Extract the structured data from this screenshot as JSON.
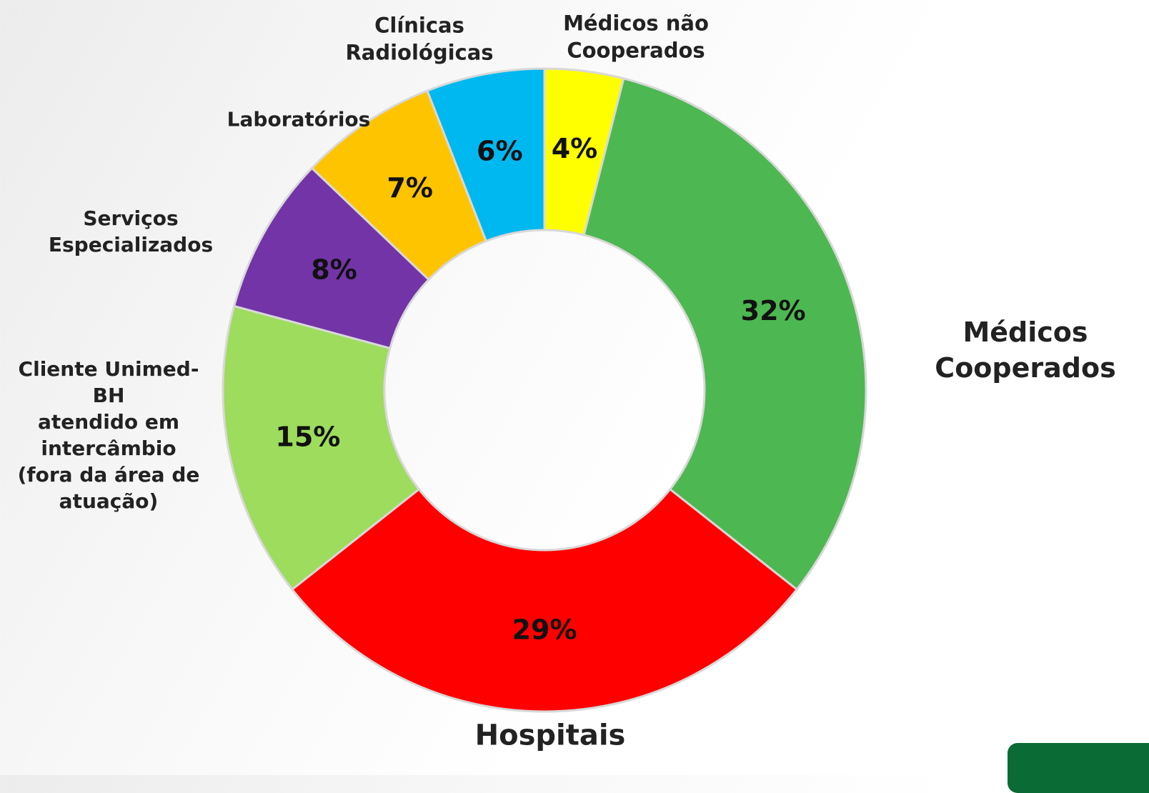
{
  "chart_data": {
    "type": "donut",
    "categories": [
      "Médicos não\nCooperados",
      "Médicos\nCooperados",
      "Hospitais",
      "Cliente Unimed-\nBH\natendido em\nintercâmbio\n(fora da área de\natuação)",
      "Serviços\nEspecializados",
      "Laboratórios",
      "Clínicas\nRadiológicas"
    ],
    "values": [
      4,
      32,
      29,
      15,
      8,
      7,
      6
    ],
    "value_labels": [
      "4%",
      "32%",
      "29%",
      "15%",
      "8%",
      "7%",
      "6%"
    ],
    "colors": [
      "#ffff00",
      "#4db851",
      "#ff0000",
      "#9ddc5c",
      "#7334a8",
      "#ffc400",
      "#00b8f0"
    ]
  }
}
